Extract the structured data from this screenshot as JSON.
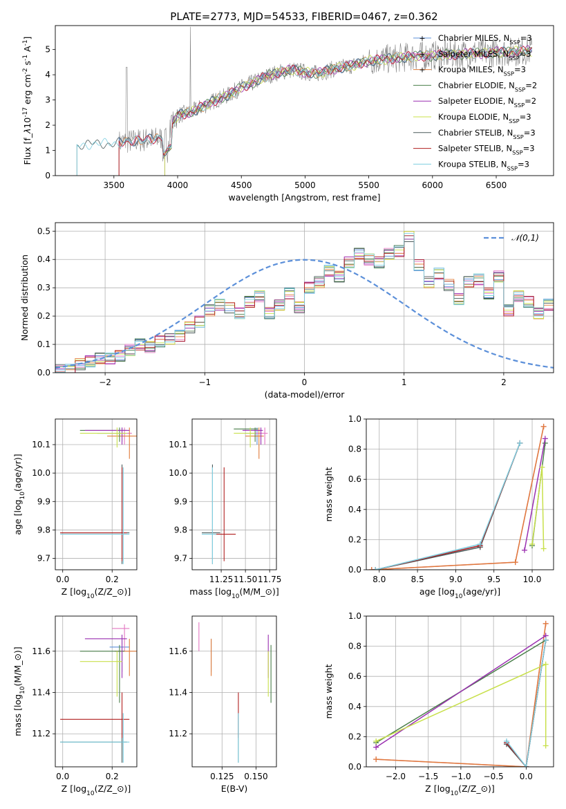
{
  "figure_title": "PLATE=2773, MJD=54533, FIBERID=0467, z=0.362",
  "colors": {
    "chabrier_miles": "#5b8fd9",
    "salpeter_miles": "#e377c2",
    "kroupa_miles": "#e07b39",
    "chabrier_elodie": "#4a7f4a",
    "salpeter_elodie": "#9a2fb0",
    "kroupa_elodie": "#c8e04a",
    "chabrier_stelib": "#4a5a5a",
    "salpeter_stelib": "#b01e1e",
    "kroupa_stelib": "#7ecfe0",
    "data": "#808080",
    "gauss": "#5b8fd9"
  },
  "legend_models": [
    "Chabrier MILES, N$_{SSP}$=3",
    "Salpeter MILES, N$_{SSP}$=3",
    "Kroupa MILES, N$_{SSP}$=3",
    "Chabrier ELODIE, N$_{SSP}$=2",
    "Salpeter ELODIE, N$_{SSP}$=2",
    "Kroupa ELODIE, N$_{SSP}$=3",
    "Chabrier STELIB, N$_{SSP}$=3",
    "Salpeter STELIB, N$_{SSP}$=3",
    "Kroupa STELIB, N$_{SSP}$=3"
  ],
  "chart_data": [
    {
      "type": "line",
      "panel": "spectrum",
      "xlabel": "wavelength [Angstrom, rest frame]",
      "ylabel": "Flux [f$_\\lambda$10$^{-17}$ erg cm$^{-2}$ s$^{-1}$ A$^{-1}$]",
      "xlim": [
        3040,
        6950
      ],
      "ylim": [
        0,
        5.95
      ],
      "xticks": [
        "3500",
        "4000",
        "4500",
        "5000",
        "5500",
        "6000",
        "6500"
      ],
      "yticks": [
        "0",
        "1",
        "2",
        "3",
        "4",
        "5"
      ],
      "continuum_x": [
        3210,
        3300,
        3400,
        3500,
        3600,
        3700,
        3800,
        3900,
        4000,
        4100,
        4200,
        4300,
        4400,
        4500,
        4600,
        4700,
        4800,
        4900,
        5000,
        5100,
        5200,
        5300,
        5400,
        5500,
        5600,
        5700,
        5800,
        5900,
        6000,
        6100,
        6200,
        6300,
        6400,
        6500,
        6600,
        6700,
        6780
      ],
      "continuum_y": [
        1.2,
        1.25,
        1.25,
        1.3,
        1.35,
        1.4,
        1.45,
        1.5,
        2.4,
        2.5,
        2.75,
        3.0,
        3.2,
        3.5,
        3.7,
        3.95,
        4.1,
        4.2,
        4.1,
        4.05,
        4.2,
        4.3,
        4.4,
        4.55,
        4.6,
        4.65,
        4.7,
        4.75,
        4.75,
        4.8,
        4.8,
        4.85,
        4.85,
        4.9,
        4.9,
        4.95,
        4.95
      ],
      "legend": "top-right"
    },
    {
      "type": "bar",
      "panel": "residuals",
      "xlabel": "(data-model)/error",
      "ylabel": "Normed distribution",
      "xlim": [
        -2.5,
        2.5
      ],
      "ylim": [
        0,
        0.53
      ],
      "xticks": [
        "−2",
        "−1",
        "0",
        "1",
        "2"
      ],
      "yticks": [
        "0.0",
        "0.1",
        "0.2",
        "0.3",
        "0.4",
        "0.5"
      ],
      "bin_edges_start": -2.5,
      "bin_width": 0.1,
      "hist_values": [
        0.01,
        0.01,
        0.03,
        0.04,
        0.05,
        0.05,
        0.06,
        0.08,
        0.1,
        0.09,
        0.11,
        0.12,
        0.13,
        0.16,
        0.18,
        0.22,
        0.24,
        0.23,
        0.21,
        0.25,
        0.27,
        0.21,
        0.24,
        0.28,
        0.23,
        0.3,
        0.32,
        0.36,
        0.34,
        0.39,
        0.42,
        0.4,
        0.39,
        0.42,
        0.43,
        0.48,
        0.38,
        0.32,
        0.35,
        0.31,
        0.26,
        0.32,
        0.33,
        0.28,
        0.34,
        0.22,
        0.27,
        0.25,
        0.21,
        0.24,
        0.2,
        0.18,
        0.16,
        0.15,
        0.14,
        0.19,
        0.14,
        0.11,
        0.13,
        0.09,
        0.1,
        0.08,
        0.11,
        0.09,
        0.07,
        0.05,
        0.05,
        0.04,
        0.03,
        0.03,
        0.03,
        0.03,
        0.03,
        0.02,
        0.02
      ],
      "legend_label": "$\\mathcal{N}(0,1)$",
      "legend": "top-right"
    },
    {
      "type": "scatter",
      "panel": "age-vs-Z",
      "xlabel": "Z [log$_{10}$(Z/Z$_\\odot$)]",
      "ylabel": "age  [log$_{10}$(age/yr)]",
      "xlim": [
        -0.03,
        0.3
      ],
      "ylim": [
        9.66,
        10.19
      ],
      "xticks": [
        "0.0",
        "0.2"
      ],
      "yticks": [
        "9.7",
        "9.8",
        "9.9",
        "10.0",
        "10.1"
      ],
      "points": [
        {
          "model": "chabrier_miles",
          "x": 0.24,
          "y": 10.14,
          "xe": [
            0.14,
            0.27
          ],
          "ye": [
            10.11,
            10.16
          ]
        },
        {
          "model": "salpeter_miles",
          "x": 0.25,
          "y": 10.14,
          "xe": [
            0.19,
            0.28
          ],
          "ye": [
            10.1,
            10.16
          ]
        },
        {
          "model": "kroupa_miles",
          "x": 0.27,
          "y": 10.13,
          "xe": [
            0.18,
            0.3
          ],
          "ye": [
            10.05,
            10.16
          ]
        },
        {
          "model": "chabrier_elodie",
          "x": 0.23,
          "y": 10.15,
          "xe": [
            0.07,
            0.26
          ],
          "ye": [
            10.11,
            10.16
          ]
        },
        {
          "model": "salpeter_elodie",
          "x": 0.24,
          "y": 10.15,
          "xe": [
            0.09,
            0.27
          ],
          "ye": [
            10.1,
            10.16
          ]
        },
        {
          "model": "kroupa_elodie",
          "x": 0.22,
          "y": 10.14,
          "xe": [
            0.07,
            0.26
          ],
          "ye": [
            10.09,
            10.16
          ]
        },
        {
          "model": "chabrier_stelib",
          "x": 0.24,
          "y": 9.79,
          "xe": [
            -0.01,
            0.27
          ],
          "ye": [
            9.68,
            10.03
          ]
        },
        {
          "model": "salpeter_stelib",
          "x": 0.24,
          "y": 9.79,
          "xe": [
            -0.01,
            0.26
          ],
          "ye": [
            9.69,
            10.02
          ]
        },
        {
          "model": "kroupa_stelib",
          "x": 0.245,
          "y": 9.785,
          "xe": [
            -0.01,
            0.27
          ],
          "ye": [
            9.68,
            10.02
          ]
        }
      ]
    },
    {
      "type": "scatter",
      "panel": "age-vs-mass",
      "xlabel": "mass [log$_{10}$(M/M$_\\odot$)]",
      "ylabel": "",
      "xlim": [
        10.95,
        11.82
      ],
      "ylim": [
        9.66,
        10.19
      ],
      "xticks": [
        "11.25",
        "11.50",
        "11.75"
      ],
      "yticks": [
        "9.7",
        "9.8",
        "9.9",
        "10.0",
        "10.1"
      ],
      "points": [
        {
          "model": "chabrier_miles",
          "x": 11.62,
          "y": 10.14,
          "xe": [
            11.5,
            11.66
          ],
          "ye": [
            10.1,
            10.16
          ]
        },
        {
          "model": "salpeter_miles",
          "x": 11.7,
          "y": 10.14,
          "xe": [
            11.6,
            11.73
          ],
          "ye": [
            10.1,
            10.16
          ]
        },
        {
          "model": "kroupa_miles",
          "x": 11.64,
          "y": 10.13,
          "xe": [
            11.5,
            11.69
          ],
          "ye": [
            10.05,
            10.16
          ]
        },
        {
          "model": "chabrier_elodie",
          "x": 11.6,
          "y": 10.155,
          "xe": [
            11.38,
            11.63
          ],
          "ye": [
            10.11,
            10.16
          ]
        },
        {
          "model": "salpeter_elodie",
          "x": 11.66,
          "y": 10.15,
          "xe": [
            11.47,
            11.68
          ],
          "ye": [
            10.1,
            10.16
          ]
        },
        {
          "model": "kroupa_elodie",
          "x": 11.55,
          "y": 10.14,
          "xe": [
            11.38,
            11.6
          ],
          "ye": [
            10.09,
            10.16
          ]
        },
        {
          "model": "chabrier_stelib",
          "x": 11.16,
          "y": 9.79,
          "xe": [
            11.05,
            11.24
          ],
          "ye": [
            9.68,
            10.03
          ]
        },
        {
          "model": "salpeter_stelib",
          "x": 11.28,
          "y": 9.785,
          "xe": [
            11.18,
            11.4
          ],
          "ye": [
            9.69,
            10.02
          ]
        },
        {
          "model": "kroupa_stelib",
          "x": 11.16,
          "y": 9.785,
          "xe": [
            11.05,
            11.2
          ],
          "ye": [
            9.68,
            10.02
          ]
        }
      ]
    },
    {
      "type": "line",
      "panel": "mass-weight-vs-age",
      "xlabel": "age  [log$_{10}$(age/yr)]",
      "ylabel": "mass weight",
      "xlim": [
        7.83,
        10.28
      ],
      "ylim": [
        0,
        1.0
      ],
      "xticks": [
        "8.0",
        "8.5",
        "9.0",
        "9.5",
        "10.0"
      ],
      "yticks": [
        "0.0",
        "0.2",
        "0.4",
        "0.6",
        "0.8",
        "1.0"
      ],
      "series": [
        {
          "model": "chabrier_miles",
          "x": [
            7.95,
            9.32,
            9.84
          ],
          "y": [
            0.0,
            0.16,
            0.84
          ]
        },
        {
          "model": "salpeter_miles",
          "x": [
            7.9,
            9.78,
            10.15
          ],
          "y": [
            0.0,
            0.05,
            0.95
          ]
        },
        {
          "model": "kroupa_miles",
          "x": [
            7.9,
            9.78,
            10.15
          ],
          "y": [
            0.0,
            0.05,
            0.95
          ]
        },
        {
          "model": "chabrier_elodie",
          "x": [
            10.0,
            10.17
          ],
          "y": [
            0.16,
            0.84
          ]
        },
        {
          "model": "salpeter_elodie",
          "x": [
            9.9,
            10.17
          ],
          "y": [
            0.13,
            0.87
          ]
        },
        {
          "model": "kroupa_elodie",
          "x": [
            10.0,
            10.13,
            10.15
          ],
          "y": [
            0.17,
            0.68,
            0.14
          ]
        },
        {
          "model": "chabrier_stelib",
          "x": [
            7.95,
            9.32,
            9.84
          ],
          "y": [
            0.0,
            0.15,
            0.84
          ]
        },
        {
          "model": "salpeter_stelib",
          "x": [
            7.95,
            9.32,
            9.84
          ],
          "y": [
            0.0,
            0.16,
            0.84
          ]
        },
        {
          "model": "kroupa_stelib",
          "x": [
            7.95,
            9.32,
            9.84
          ],
          "y": [
            0.0,
            0.17,
            0.84
          ]
        }
      ]
    },
    {
      "type": "scatter",
      "panel": "mass-vs-Z",
      "xlabel": "Z [log$_{10}$(Z/Z$_\\odot$)]",
      "ylabel": "mass [log$_{10}$(M/M$_\\odot$)]",
      "xlim": [
        -0.03,
        0.3
      ],
      "ylim": [
        11.04,
        11.77
      ],
      "xticks": [
        "0.0",
        "0.2"
      ],
      "yticks": [
        "11.2",
        "11.4",
        "11.6"
      ],
      "points": [
        {
          "model": "chabrier_miles",
          "x": 0.24,
          "y": 11.62,
          "xe": [
            0.19,
            0.27
          ],
          "ye": [
            11.5,
            11.66
          ]
        },
        {
          "model": "salpeter_miles",
          "x": 0.25,
          "y": 11.71,
          "xe": [
            0.2,
            0.27
          ],
          "ye": [
            11.6,
            11.73
          ]
        },
        {
          "model": "kroupa_miles",
          "x": 0.27,
          "y": 11.6,
          "xe": [
            0.21,
            0.3
          ],
          "ye": [
            11.48,
            11.66
          ]
        },
        {
          "model": "chabrier_elodie",
          "x": 0.23,
          "y": 11.6,
          "xe": [
            0.07,
            0.25
          ],
          "ye": [
            11.35,
            11.63
          ]
        },
        {
          "model": "salpeter_elodie",
          "x": 0.24,
          "y": 11.66,
          "xe": [
            0.09,
            0.26
          ],
          "ye": [
            11.47,
            11.68
          ]
        },
        {
          "model": "kroupa_elodie",
          "x": 0.22,
          "y": 11.55,
          "xe": [
            0.07,
            0.24
          ],
          "ye": [
            11.38,
            11.6
          ]
        },
        {
          "model": "chabrier_stelib",
          "x": 0.24,
          "y": 11.16,
          "xe": [
            -0.01,
            0.26
          ],
          "ye": [
            11.06,
            11.3
          ]
        },
        {
          "model": "salpeter_stelib",
          "x": 0.24,
          "y": 11.27,
          "xe": [
            -0.01,
            0.27
          ],
          "ye": [
            11.18,
            11.4
          ]
        },
        {
          "model": "kroupa_stelib",
          "x": 0.245,
          "y": 11.16,
          "xe": [
            -0.01,
            0.27
          ],
          "ye": [
            11.06,
            11.3
          ]
        }
      ]
    },
    {
      "type": "scatter",
      "panel": "mass-vs-ebv",
      "xlabel": "E(B-V)",
      "ylabel": "",
      "xlim": [
        0.103,
        0.165
      ],
      "ylim": [
        11.04,
        11.77
      ],
      "xticks": [
        "0.125",
        "0.150"
      ],
      "yticks": [
        "11.2",
        "11.4",
        "11.6"
      ],
      "points": [
        {
          "model": "chabrier_miles",
          "x": 0.117,
          "y": 11.62,
          "ye": [
            11.5,
            11.66
          ]
        },
        {
          "model": "salpeter_miles",
          "x": 0.108,
          "y": 11.71,
          "ye": [
            11.6,
            11.74
          ]
        },
        {
          "model": "kroupa_miles",
          "x": 0.117,
          "y": 11.6,
          "ye": [
            11.48,
            11.66
          ]
        },
        {
          "model": "chabrier_elodie",
          "x": 0.161,
          "y": 11.6,
          "ye": [
            11.35,
            11.63
          ]
        },
        {
          "model": "salpeter_elodie",
          "x": 0.159,
          "y": 11.66,
          "ye": [
            11.47,
            11.68
          ]
        },
        {
          "model": "kroupa_elodie",
          "x": 0.159,
          "y": 11.55,
          "ye": [
            11.38,
            11.6
          ]
        },
        {
          "model": "chabrier_stelib",
          "x": 0.137,
          "y": 11.16,
          "ye": [
            11.06,
            11.3
          ]
        },
        {
          "model": "salpeter_stelib",
          "x": 0.137,
          "y": 11.27,
          "ye": [
            11.18,
            11.4
          ]
        },
        {
          "model": "kroupa_stelib",
          "x": 0.137,
          "y": 11.16,
          "ye": [
            11.06,
            11.3
          ]
        }
      ]
    },
    {
      "type": "line",
      "panel": "mass-weight-vs-Z",
      "xlabel": "Z [log$_{10}$(Z/Z$_\\odot$)]",
      "ylabel": "mass weight",
      "xlim": [
        -2.45,
        0.42
      ],
      "ylim": [
        0,
        1.0
      ],
      "xticks": [
        "−2.0",
        "−1.5",
        "−1.0",
        "−0.5",
        "0.0"
      ],
      "yticks": [
        "0.0",
        "0.2",
        "0.4",
        "0.6",
        "0.8",
        "1.0"
      ],
      "series": [
        {
          "model": "chabrier_miles",
          "x": [
            -0.3,
            0.0,
            0.3
          ],
          "y": [
            0.16,
            0.0,
            0.84
          ]
        },
        {
          "model": "salpeter_miles",
          "x": [
            -2.3,
            0.0,
            0.3
          ],
          "y": [
            0.05,
            0.0,
            0.95
          ]
        },
        {
          "model": "kroupa_miles",
          "x": [
            -2.3,
            0.0,
            0.3
          ],
          "y": [
            0.05,
            0.0,
            0.95
          ]
        },
        {
          "model": "chabrier_elodie",
          "x": [
            -2.3,
            0.3
          ],
          "y": [
            0.16,
            0.84
          ]
        },
        {
          "model": "salpeter_elodie",
          "x": [
            -2.3,
            0.3
          ],
          "y": [
            0.13,
            0.87
          ]
        },
        {
          "model": "kroupa_elodie",
          "x": [
            -2.3,
            0.3,
            0.3
          ],
          "y": [
            0.17,
            0.68,
            0.14
          ]
        },
        {
          "model": "chabrier_stelib",
          "x": [
            -0.3,
            0.0,
            0.3
          ],
          "y": [
            0.15,
            0.0,
            0.84
          ]
        },
        {
          "model": "salpeter_stelib",
          "x": [
            -0.3,
            0.0,
            0.3
          ],
          "y": [
            0.16,
            0.0,
            0.84
          ]
        },
        {
          "model": "kroupa_stelib",
          "x": [
            -0.3,
            0.0,
            0.3
          ],
          "y": [
            0.17,
            0.0,
            0.84
          ]
        }
      ]
    }
  ]
}
